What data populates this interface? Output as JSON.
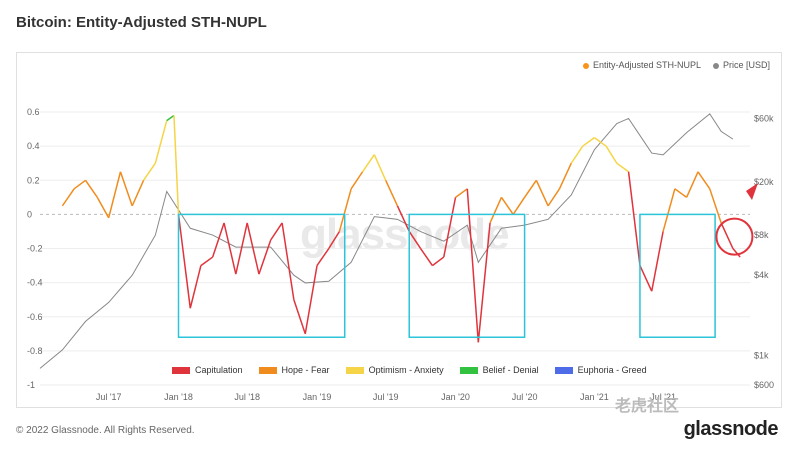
{
  "header": {
    "title": "Bitcoin: Entity-Adjusted STH-NUPL"
  },
  "footer": {
    "copyright": "© 2022 Glassnode. All Rights Reserved.",
    "brand": "glassnode"
  },
  "watermark": {
    "center": "glassnode",
    "corner": "老虎社区"
  },
  "chart_data": {
    "type": "line",
    "x_ticks": [
      "Jul '17",
      "Jan '18",
      "Jul '18",
      "Jan '19",
      "Jul '19",
      "Jan '20",
      "Jul '20",
      "Jan '21",
      "Jul '21"
    ],
    "y_ticks_left": [
      "0.6",
      "0.4",
      "0.2",
      "0",
      "-0.2",
      "-0.4",
      "-0.6",
      "-0.8",
      "-1"
    ],
    "y_ticks_right": [
      "$60k",
      "$20k",
      "$8k",
      "$4k",
      "$1k",
      "$600"
    ],
    "ylim": [
      -1,
      0.7
    ],
    "legend_top": [
      {
        "name": "Entity-Adjusted STH-NUPL",
        "color": "#f7931a"
      },
      {
        "name": "Price [USD]",
        "color": "#888888"
      }
    ],
    "zones": [
      {
        "name": "Capitulation",
        "color": "#e0343c"
      },
      {
        "name": "Hope - Fear",
        "color": "#f08c1e"
      },
      {
        "name": "Optimism - Anxiety",
        "color": "#f5d547"
      },
      {
        "name": "Belief - Denial",
        "color": "#33c140"
      },
      {
        "name": "Euphoria - Greed",
        "color": "#4f6ce8"
      }
    ],
    "series": [
      {
        "name": "Entity-Adjusted STH-NUPL",
        "points": [
          [
            "2017-03",
            0.05
          ],
          [
            "2017-04",
            0.15
          ],
          [
            "2017-05",
            0.2
          ],
          [
            "2017-06",
            0.1
          ],
          [
            "2017-07",
            -0.02
          ],
          [
            "2017-08",
            0.25
          ],
          [
            "2017-09",
            0.05
          ],
          [
            "2017-10",
            0.2
          ],
          [
            "2017-11",
            0.3
          ],
          [
            "2017-12",
            0.55
          ],
          [
            "2017-12-20",
            0.58
          ],
          [
            "2018-01",
            0.0
          ],
          [
            "2018-02",
            -0.55
          ],
          [
            "2018-03",
            -0.3
          ],
          [
            "2018-04",
            -0.25
          ],
          [
            "2018-05",
            -0.05
          ],
          [
            "2018-06",
            -0.35
          ],
          [
            "2018-07",
            -0.05
          ],
          [
            "2018-08",
            -0.35
          ],
          [
            "2018-09",
            -0.15
          ],
          [
            "2018-10",
            -0.05
          ],
          [
            "2018-11",
            -0.5
          ],
          [
            "2018-12",
            -0.7
          ],
          [
            "2019-01",
            -0.3
          ],
          [
            "2019-02",
            -0.2
          ],
          [
            "2019-03",
            -0.1
          ],
          [
            "2019-04",
            0.15
          ],
          [
            "2019-05",
            0.25
          ],
          [
            "2019-06",
            0.35
          ],
          [
            "2019-07",
            0.2
          ],
          [
            "2019-08",
            0.05
          ],
          [
            "2019-09",
            -0.1
          ],
          [
            "2019-10",
            -0.2
          ],
          [
            "2019-11",
            -0.3
          ],
          [
            "2019-12",
            -0.25
          ],
          [
            "2020-01",
            0.1
          ],
          [
            "2020-02",
            0.15
          ],
          [
            "2020-03",
            -0.75
          ],
          [
            "2020-04",
            -0.05
          ],
          [
            "2020-05",
            0.1
          ],
          [
            "2020-06",
            0.0
          ],
          [
            "2020-07",
            0.1
          ],
          [
            "2020-08",
            0.2
          ],
          [
            "2020-09",
            0.05
          ],
          [
            "2020-10",
            0.15
          ],
          [
            "2020-11",
            0.3
          ],
          [
            "2020-12",
            0.4
          ],
          [
            "2021-01",
            0.45
          ],
          [
            "2021-02",
            0.4
          ],
          [
            "2021-03",
            0.3
          ],
          [
            "2021-04",
            0.25
          ],
          [
            "2021-05",
            -0.3
          ],
          [
            "2021-06",
            -0.45
          ],
          [
            "2021-07",
            -0.1
          ],
          [
            "2021-08",
            0.15
          ],
          [
            "2021-09",
            0.1
          ],
          [
            "2021-10",
            0.25
          ],
          [
            "2021-11",
            0.15
          ],
          [
            "2021-12",
            -0.05
          ],
          [
            "2022-01",
            -0.2
          ],
          [
            "2022-01-20",
            -0.25
          ]
        ]
      },
      {
        "name": "Price [USD]",
        "points": [
          [
            "2017-01",
            800
          ],
          [
            "2017-03",
            1100
          ],
          [
            "2017-05",
            1800
          ],
          [
            "2017-07",
            2500
          ],
          [
            "2017-09",
            4000
          ],
          [
            "2017-11",
            8000
          ],
          [
            "2017-12",
            17000
          ],
          [
            "2018-02",
            9000
          ],
          [
            "2018-04",
            8000
          ],
          [
            "2018-06",
            6500
          ],
          [
            "2018-09",
            6500
          ],
          [
            "2018-11",
            4000
          ],
          [
            "2018-12",
            3500
          ],
          [
            "2019-02",
            3600
          ],
          [
            "2019-04",
            5000
          ],
          [
            "2019-06",
            11000
          ],
          [
            "2019-08",
            10500
          ],
          [
            "2019-10",
            8500
          ],
          [
            "2019-12",
            7200
          ],
          [
            "2020-02",
            9500
          ],
          [
            "2020-03",
            5000
          ],
          [
            "2020-05",
            9000
          ],
          [
            "2020-07",
            9500
          ],
          [
            "2020-09",
            10500
          ],
          [
            "2020-11",
            16000
          ],
          [
            "2021-01",
            35000
          ],
          [
            "2021-03",
            55000
          ],
          [
            "2021-04",
            60000
          ],
          [
            "2021-06",
            33000
          ],
          [
            "2021-07",
            32000
          ],
          [
            "2021-09",
            47000
          ],
          [
            "2021-11",
            65000
          ],
          [
            "2021-12",
            48000
          ],
          [
            "2022-01",
            42000
          ]
        ]
      }
    ]
  }
}
